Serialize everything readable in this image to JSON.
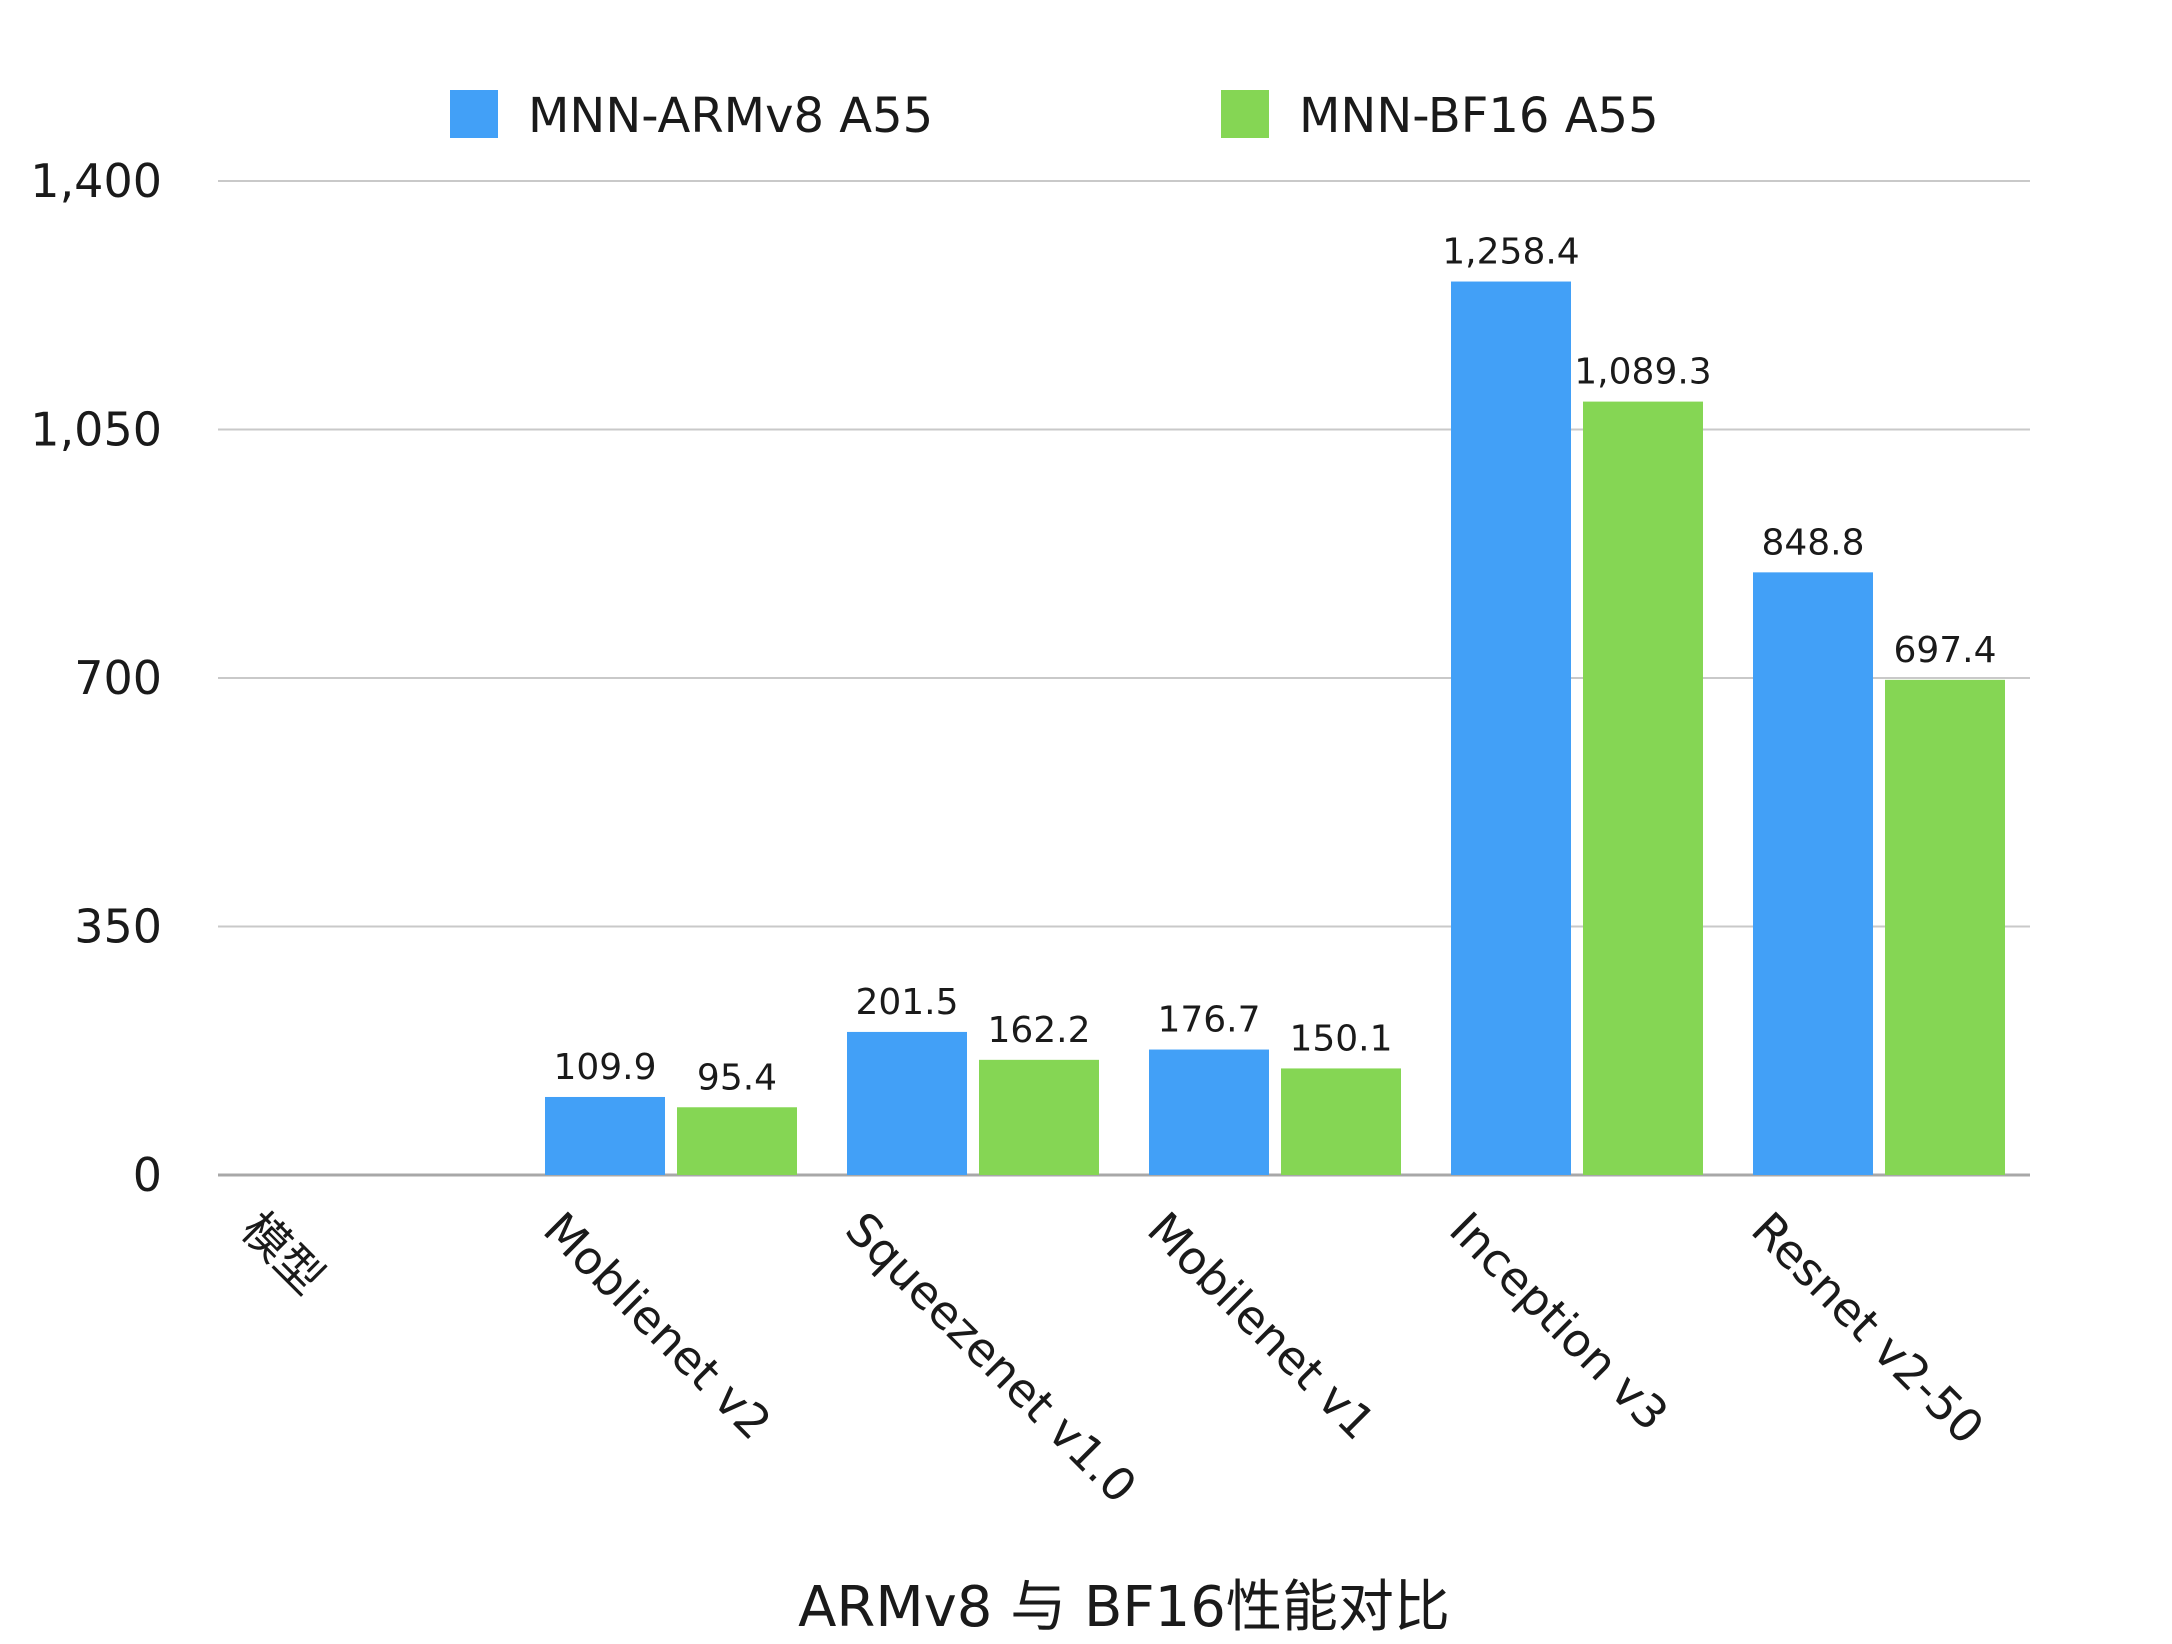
{
  "chart_data": {
    "type": "bar",
    "title": "",
    "xlabel": "ARMv8 与 BF16性能对比",
    "ylabel": "",
    "ylim": [
      0,
      1400
    ],
    "yticks": [
      0,
      350,
      700,
      1050,
      1400
    ],
    "ytick_labels": [
      "0",
      "350",
      "700",
      "1,050",
      "1,400"
    ],
    "grid": true,
    "legend_position": "top",
    "categories": [
      "模型",
      "Moblienet v2",
      "Squeezenet v1.0",
      "Mobilenet v1",
      "Inception v3",
      "Resnet v2-50"
    ],
    "series": [
      {
        "name": "MNN-ARMv8 A55",
        "color": "#42a0f7",
        "values": [
          null,
          109.9,
          201.5,
          176.7,
          1258.4,
          848.8
        ],
        "labels": [
          "",
          "109.9",
          "201.5",
          "176.7",
          "1,258.4",
          "848.8"
        ]
      },
      {
        "name": "MNN-BF16 A55",
        "color": "#85d654",
        "values": [
          null,
          95.4,
          162.2,
          150.1,
          1089.3,
          697.4
        ],
        "labels": [
          "",
          "95.4",
          "162.2",
          "150.1",
          "1,089.3",
          "697.4"
        ]
      }
    ]
  }
}
